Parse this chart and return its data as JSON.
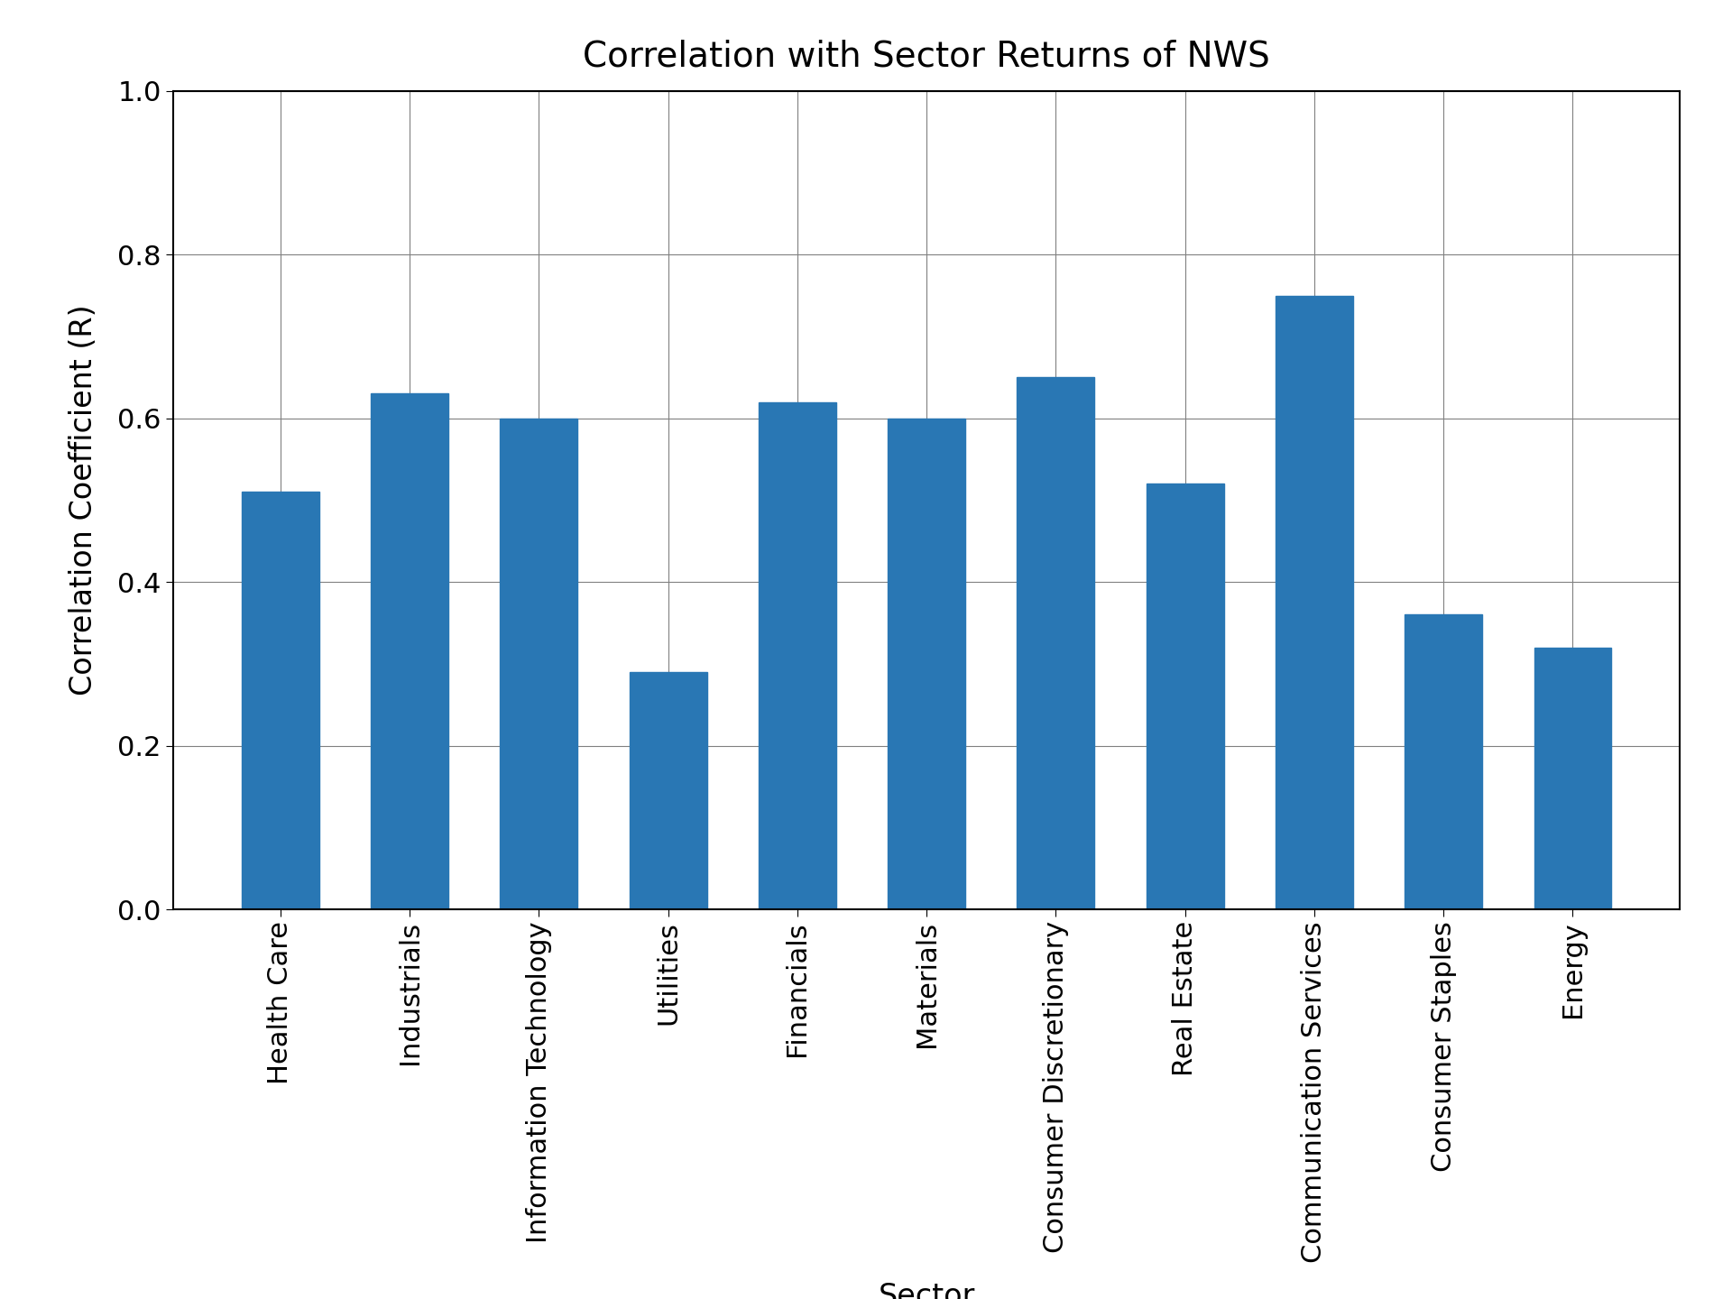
{
  "title": "Correlation with Sector Returns of NWS",
  "xlabel": "Sector",
  "ylabel": "Correlation Coefficient (R)",
  "categories": [
    "Health Care",
    "Industrials",
    "Information Technology",
    "Utilities",
    "Financials",
    "Materials",
    "Consumer Discretionary",
    "Real Estate",
    "Communication Services",
    "Consumer Staples",
    "Energy"
  ],
  "values": [
    0.51,
    0.63,
    0.6,
    0.29,
    0.62,
    0.6,
    0.65,
    0.52,
    0.75,
    0.36,
    0.32
  ],
  "bar_color": "#2977b4",
  "ylim": [
    0.0,
    1.0
  ],
  "yticks": [
    0.0,
    0.2,
    0.4,
    0.6,
    0.8,
    1.0
  ],
  "title_fontsize": 28,
  "label_fontsize": 24,
  "tick_fontsize": 22,
  "figsize": [
    19.2,
    14.4
  ],
  "dpi": 100,
  "background_color": "#ffffff"
}
